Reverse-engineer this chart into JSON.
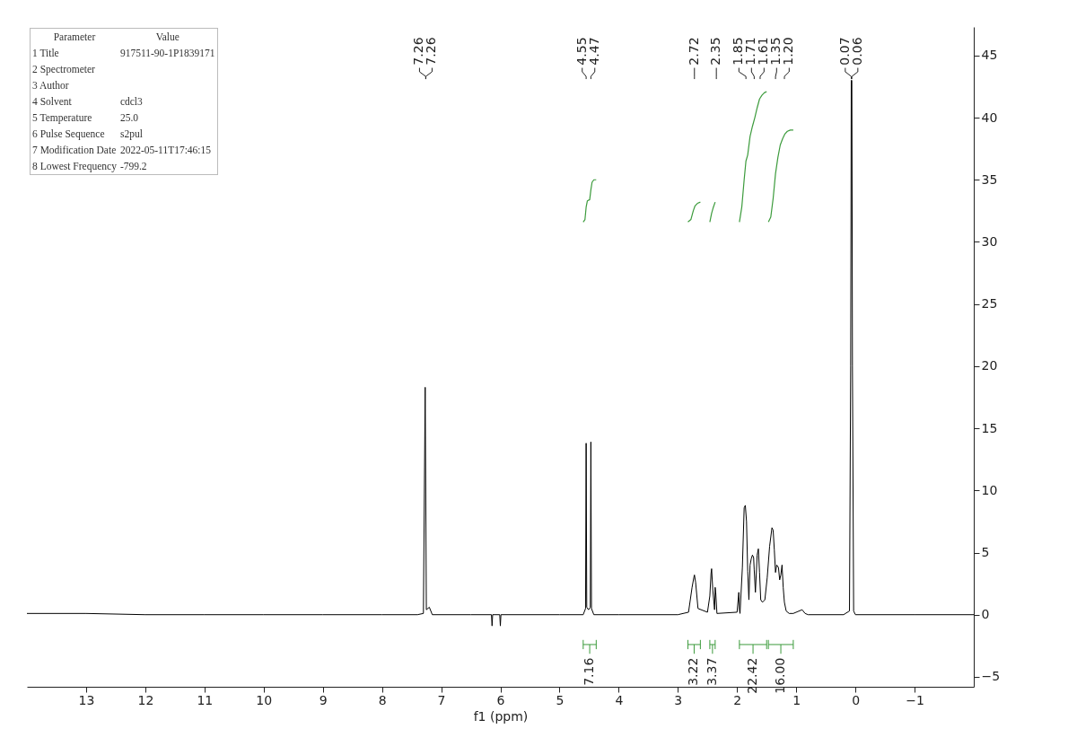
{
  "chart_data": {
    "type": "line",
    "xlabel": "f1 (ppm)",
    "xlim": [
      14.0,
      -2.0
    ],
    "xticks": [
      13,
      12,
      11,
      10,
      9,
      8,
      7,
      6,
      5,
      4,
      3,
      2,
      1,
      0,
      -1
    ],
    "ylim": [
      -5.8,
      47.3
    ],
    "yticks": [
      -5,
      0,
      5,
      10,
      15,
      20,
      25,
      30,
      35,
      40,
      45
    ],
    "grid": false,
    "series": [
      {
        "color": "#000000",
        "x": [
          14.0,
          13.0,
          12.0,
          11.0,
          10.0,
          9.0,
          8.0,
          7.4,
          7.3,
          7.27,
          7.25,
          7.2,
          7.15,
          6.5,
          6.15,
          6.14,
          6.13,
          6.01,
          6.0,
          5.99,
          5.0,
          4.6,
          4.56,
          4.55,
          4.54,
          4.51,
          4.48,
          4.47,
          4.46,
          4.42,
          4.0,
          3.0,
          2.82,
          2.76,
          2.73,
          2.72,
          2.7,
          2.66,
          2.5,
          2.46,
          2.44,
          2.43,
          2.41,
          2.38,
          2.37,
          2.36,
          2.34,
          2.0,
          1.97,
          1.96,
          1.95,
          1.91,
          1.88,
          1.86,
          1.84,
          1.82,
          1.8,
          1.78,
          1.76,
          1.74,
          1.72,
          1.71,
          1.69,
          1.66,
          1.64,
          1.62,
          1.6,
          1.57,
          1.53,
          1.49,
          1.45,
          1.41,
          1.39,
          1.37,
          1.35,
          1.33,
          1.3,
          1.28,
          1.26,
          1.24,
          1.22,
          1.2,
          1.17,
          1.12,
          1.05,
          0.9,
          0.85,
          0.8,
          0.2,
          0.1,
          0.08,
          0.07,
          0.06,
          0.05,
          0.03,
          0.0,
          -1.0,
          -2.0
        ],
        "values": [
          0.1,
          0.1,
          0.0,
          0.0,
          0.0,
          0.0,
          0.0,
          0.0,
          0.1,
          18.3,
          0.4,
          0.6,
          0.0,
          0.0,
          0.0,
          -0.9,
          0.0,
          0.0,
          -0.9,
          0.0,
          0.0,
          0.0,
          0.5,
          13.8,
          0.6,
          0.4,
          0.6,
          13.9,
          0.5,
          0.0,
          0.0,
          0.0,
          0.2,
          2.2,
          3.0,
          3.2,
          2.6,
          0.5,
          0.2,
          1.5,
          3.3,
          3.7,
          2.0,
          0.4,
          2.2,
          1.8,
          0.1,
          0.2,
          1.8,
          0.4,
          0.1,
          3.8,
          8.6,
          8.8,
          7.5,
          3.5,
          1.2,
          4.0,
          4.5,
          4.8,
          4.6,
          3.6,
          1.8,
          4.8,
          5.3,
          3.4,
          1.2,
          1.0,
          1.2,
          3.0,
          5.5,
          7.0,
          6.8,
          5.2,
          3.4,
          4.0,
          3.8,
          2.8,
          3.2,
          4.0,
          2.2,
          1.0,
          0.3,
          0.1,
          0.1,
          0.4,
          0.1,
          0.0,
          0.0,
          0.3,
          20.0,
          43.0,
          43.0,
          20.0,
          0.3,
          0.0,
          0.0,
          0.0
        ]
      },
      {
        "color": "#3c9b3c",
        "x": [
          4.6,
          4.57,
          4.55,
          4.53,
          4.49,
          4.47,
          4.45,
          4.42,
          4.38
        ],
        "values": [
          31.6,
          31.8,
          32.8,
          33.3,
          33.4,
          34.2,
          34.8,
          35.0,
          35.0
        ]
      },
      {
        "color": "#3c9b3c",
        "x": [
          2.83,
          2.78,
          2.74,
          2.71,
          2.67,
          2.62
        ],
        "values": [
          31.6,
          31.8,
          32.5,
          32.9,
          33.1,
          33.2
        ]
      },
      {
        "color": "#3c9b3c",
        "x": [
          2.46,
          2.43,
          2.4,
          2.37
        ],
        "values": [
          31.6,
          32.3,
          32.8,
          33.2
        ]
      },
      {
        "color": "#3c9b3c",
        "x": [
          1.96,
          1.92,
          1.88,
          1.85,
          1.82,
          1.78,
          1.74,
          1.7,
          1.66,
          1.62,
          1.58,
          1.54,
          1.5
        ],
        "values": [
          31.6,
          32.8,
          35.0,
          36.5,
          37.0,
          38.5,
          39.3,
          40.0,
          40.8,
          41.5,
          41.8,
          42.0,
          42.1
        ]
      },
      {
        "color": "#3c9b3c",
        "x": [
          1.47,
          1.43,
          1.39,
          1.35,
          1.31,
          1.27,
          1.23,
          1.19,
          1.15,
          1.1,
          1.05
        ],
        "values": [
          31.6,
          32.0,
          33.5,
          35.5,
          36.8,
          37.8,
          38.3,
          38.7,
          38.9,
          39.0,
          39.0
        ]
      }
    ],
    "annotations": [
      "Parameter\tValue",
      "1 Title\t917511-90-1P1839171",
      "2 Spectrometer\t",
      "3 Author\t",
      "4 Solvent\tcdcl3",
      "5 Temperature\t25.0",
      "6 Pulse Sequence\ts2pul",
      "7 Modification Date\t2022-05-11T17:46:15",
      "8 Lowest Frequency\t-799.2",
      {
        "text": "7.26",
        "x": 7.26
      },
      {
        "text": "7.26",
        "x": 7.26
      },
      {
        "text": "4.55",
        "x": 4.55
      },
      {
        "text": "4.47",
        "x": 4.47
      },
      {
        "text": "2.72",
        "x": 2.72
      },
      {
        "text": "2.35",
        "x": 2.35
      },
      {
        "text": "1.85",
        "x": 1.85
      },
      {
        "text": "1.71",
        "x": 1.71
      },
      {
        "text": "1.61",
        "x": 1.61
      },
      {
        "text": "1.35",
        "x": 1.35
      },
      {
        "text": "1.20",
        "x": 1.2
      },
      {
        "text": "0.07",
        "x": 0.07
      },
      {
        "text": "0.06",
        "x": 0.06
      },
      "7.16",
      "3.22",
      "3.37",
      "22.42",
      "16.00"
    ]
  }
}
